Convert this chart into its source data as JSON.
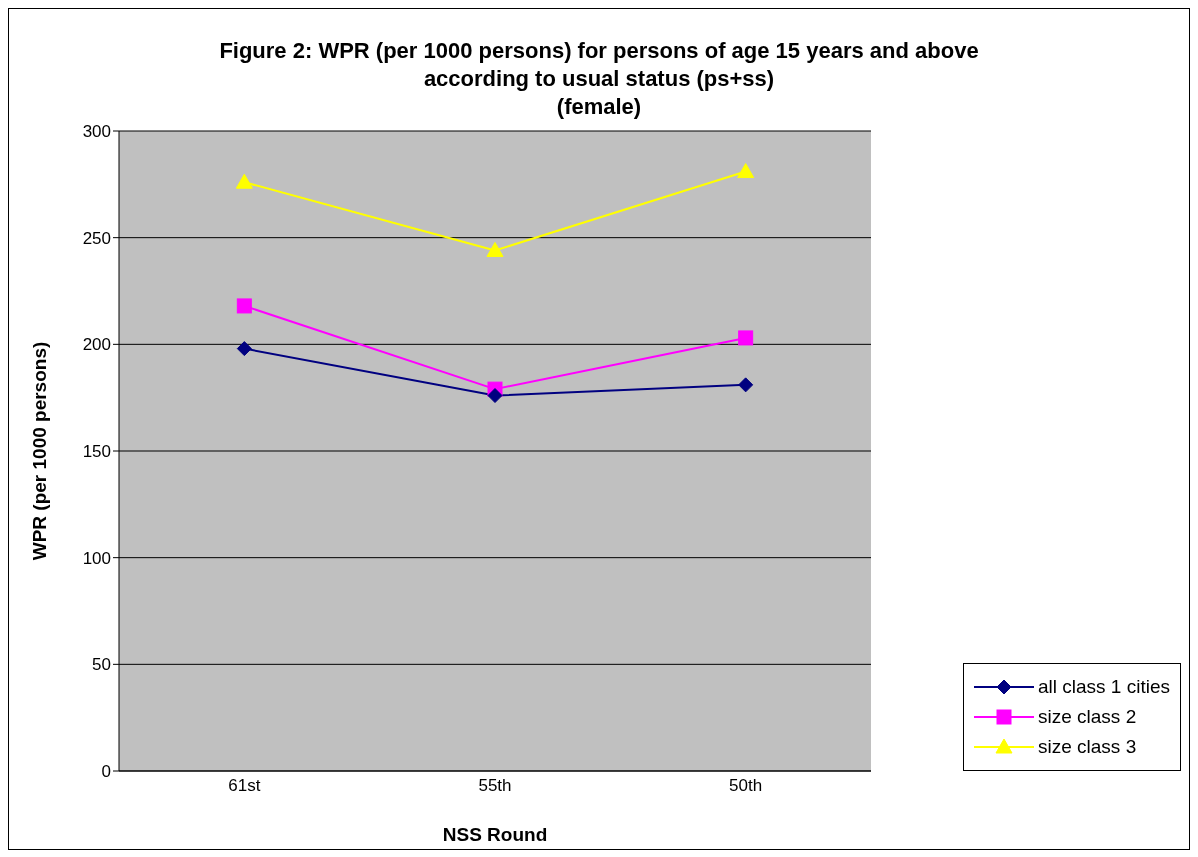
{
  "chart_data": {
    "type": "line",
    "title": "Figure 2: WPR (per 1000 persons) for persons of age 15 years and above according to usual status (ps+ss)",
    "subtitle": "(female)",
    "xlabel": "NSS Round",
    "ylabel": "WPR (per 1000 persons)",
    "categories": [
      "61st",
      "55th",
      "50th"
    ],
    "series": [
      {
        "name": "all class 1 cities",
        "color": "#000080",
        "marker": "diamond",
        "values": [
          198,
          176,
          181
        ]
      },
      {
        "name": "size class 2",
        "color": "#ff00ff",
        "marker": "square",
        "values": [
          218,
          179,
          203
        ]
      },
      {
        "name": "size class 3",
        "color": "#ffff00",
        "marker": "triangle",
        "values": [
          276,
          244,
          281
        ]
      }
    ],
    "ylim": [
      0,
      300
    ],
    "yticks": [
      0,
      50,
      100,
      150,
      200,
      250,
      300
    ],
    "grid": "y",
    "legend": "bottom right"
  }
}
